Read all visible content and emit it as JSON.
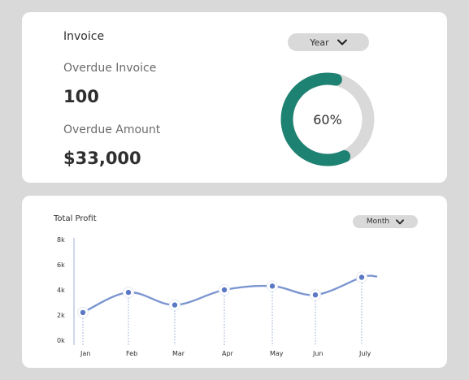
{
  "invoice": {
    "title": "Invoice",
    "period_selector": {
      "label": "Year",
      "icon": "chevron-down-icon"
    },
    "overdue_invoice_label": "Overdue Invoice",
    "overdue_invoice_value": "100",
    "overdue_amount_label": "Overdue Amount",
    "overdue_amount_value": "$33,000",
    "progress": {
      "label": "60%",
      "value": 0.6,
      "color": "#1e8272",
      "track_color": "#d9d9d9"
    }
  },
  "profit": {
    "title": "Total Profit",
    "period_selector": {
      "label": "Month",
      "icon": "chevron-down-icon"
    }
  },
  "chart_data": {
    "type": "line",
    "title": "Total Profit",
    "xlabel": "",
    "ylabel": "",
    "categories": [
      "Jan",
      "Feb",
      "Mar",
      "Apr",
      "May",
      "Jun",
      "July"
    ],
    "values": [
      2.2,
      3.8,
      2.8,
      4.0,
      4.3,
      3.6,
      5.0
    ],
    "y_ticks": [
      "0k",
      "2k",
      "4k",
      "6k",
      "8k"
    ],
    "ylim": [
      0,
      8
    ],
    "line_color": "#7b96d0",
    "point_color": "#5a78c4",
    "grid": false
  }
}
